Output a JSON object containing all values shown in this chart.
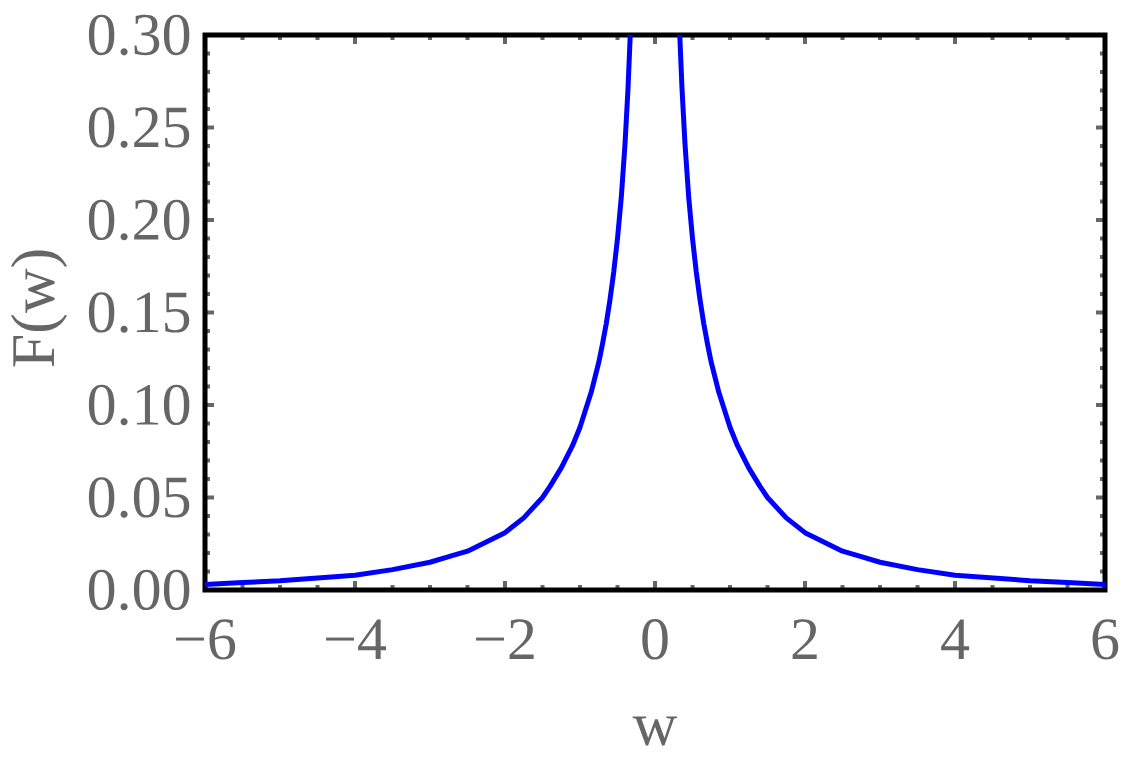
{
  "chart_data": {
    "type": "line",
    "xlabel": "w",
    "ylabel": "F(w)",
    "x": [
      -6,
      -5.5,
      -5,
      -4.5,
      -4,
      -3.5,
      -3,
      -2.75,
      -2.5,
      -2.25,
      -2,
      -1.75,
      -1.5,
      -1.4,
      -1.25,
      -1.1,
      -1,
      -0.85,
      -0.75,
      -0.7,
      -0.65,
      -0.6,
      -0.55,
      -0.5,
      -0.45,
      -0.4,
      -0.36,
      -0.33,
      0,
      0.33,
      0.36,
      0.4,
      0.45,
      0.5,
      0.55,
      0.6,
      0.65,
      0.7,
      0.75,
      0.85,
      1,
      1.1,
      1.25,
      1.4,
      1.5,
      1.75,
      2,
      2.25,
      2.5,
      2.75,
      3,
      3.5,
      4,
      4.5,
      5,
      5.5,
      6
    ],
    "series": [
      {
        "color": "#0000ff",
        "values": [
          0.003,
          0.004,
          0.005,
          0.0065,
          0.008,
          0.011,
          0.015,
          0.018,
          0.021,
          0.026,
          0.031,
          0.039,
          0.05,
          0.056,
          0.066,
          0.078,
          0.088,
          0.107,
          0.123,
          0.133,
          0.144,
          0.157,
          0.172,
          0.19,
          0.212,
          0.241,
          0.271,
          0.3,
          null,
          0.3,
          0.271,
          0.241,
          0.212,
          0.19,
          0.172,
          0.157,
          0.144,
          0.133,
          0.123,
          0.107,
          0.088,
          0.078,
          0.066,
          0.056,
          0.05,
          0.039,
          0.031,
          0.026,
          0.021,
          0.018,
          0.015,
          0.011,
          0.008,
          0.0065,
          0.005,
          0.004,
          0.003
        ]
      }
    ],
    "xlim": [
      -6,
      6
    ],
    "ylim": [
      0,
      0.3
    ],
    "xticks": [
      {
        "value": -6,
        "label": "−6"
      },
      {
        "value": -4,
        "label": "−4"
      },
      {
        "value": -2,
        "label": "−2"
      },
      0,
      2,
      4,
      6
    ],
    "yticks": [
      {
        "value": 0,
        "label": "0.00"
      },
      {
        "value": 0.05,
        "label": "0.05"
      },
      {
        "value": 0.1,
        "label": "0.10"
      },
      {
        "value": 0.15,
        "label": "0.15"
      },
      {
        "value": 0.2,
        "label": "0.20"
      },
      {
        "value": 0.25,
        "label": "0.25"
      },
      {
        "value": 0.3,
        "label": "0.30"
      }
    ],
    "line_style": "solid",
    "marker": "none"
  }
}
